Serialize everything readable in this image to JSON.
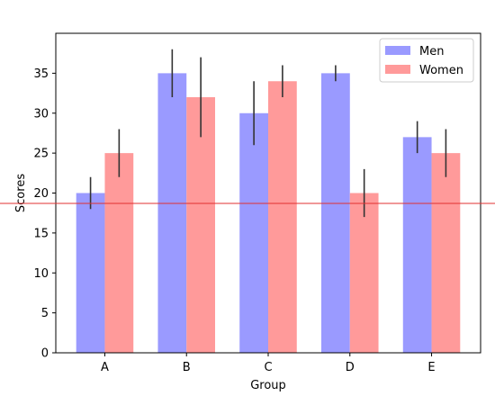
{
  "chart_data": {
    "type": "bar",
    "title": "",
    "xlabel": "Group",
    "ylabel": "Scores",
    "categories": [
      "A",
      "B",
      "C",
      "D",
      "E"
    ],
    "ylim": [
      0,
      40
    ],
    "yticks": [
      0,
      5,
      10,
      15,
      20,
      25,
      30,
      35
    ],
    "series": [
      {
        "name": "Men",
        "values": [
          20,
          35,
          30,
          35,
          27
        ],
        "errors": [
          2,
          3,
          4,
          1,
          2
        ],
        "color": "#9a9aff"
      },
      {
        "name": "Women",
        "values": [
          25,
          32,
          34,
          20,
          25
        ],
        "errors": [
          3,
          5,
          2,
          3,
          3
        ],
        "color": "#ff9a9a"
      }
    ],
    "reference_line": {
      "y": 18.7,
      "color": "#e03030"
    },
    "legend_position": "top-right",
    "grid": false
  }
}
